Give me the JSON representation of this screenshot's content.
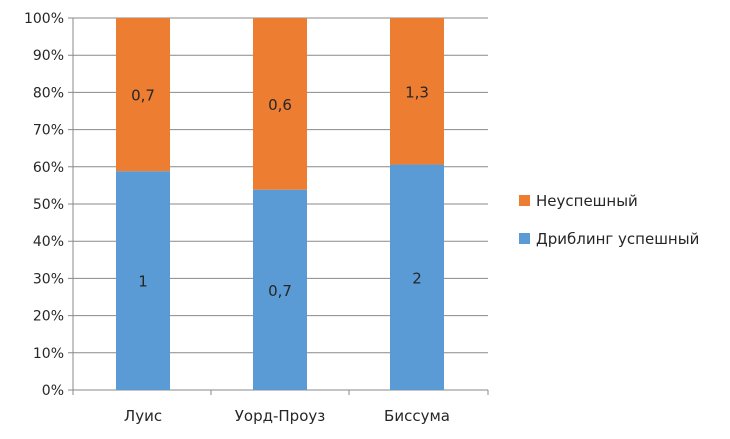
{
  "chart_data": {
    "type": "bar",
    "stacked": "percent",
    "categories": [
      "Луис",
      "Уорд-Проуз",
      "Биссума"
    ],
    "series": [
      {
        "name": "Дриблинг успешный",
        "values": [
          1,
          0.7,
          2
        ],
        "labels": [
          "1",
          "0,7",
          "2"
        ],
        "color": "#5b9bd5"
      },
      {
        "name": "Неуспешный",
        "values": [
          0.7,
          0.6,
          1.3
        ],
        "labels": [
          "0,7",
          "0,6",
          "1,3"
        ],
        "color": "#ed7d31"
      }
    ],
    "y_ticks": [
      "0%",
      "10%",
      "20%",
      "30%",
      "40%",
      "50%",
      "60%",
      "70%",
      "80%",
      "90%",
      "100%"
    ],
    "ylim": [
      0,
      100
    ],
    "grid": true,
    "legend_position": "right",
    "legend_order": [
      "Неуспешный",
      "Дриблинг успешный"
    ],
    "title": "",
    "xlabel": "",
    "ylabel": ""
  }
}
